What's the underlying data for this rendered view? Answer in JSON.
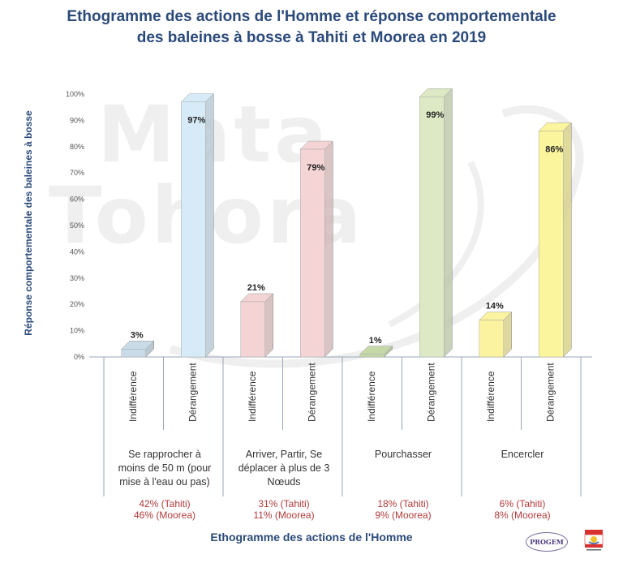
{
  "chart_data": {
    "type": "bar",
    "title": "Ethogramme des actions de l'Homme et réponse comportementale des baleines à bosse à Tahiti et Moorea en 2019",
    "title_lines": [
      "Ethogramme des actions de l'Homme et réponse comportementale",
      "des baleines à bosse à Tahiti et Moorea en 2019"
    ],
    "xlabel": "Ethogramme des actions de l'Homme",
    "ylabel": "Réponse comportementale des baleines à bosse",
    "ylim": [
      0,
      100
    ],
    "yticks": [
      "0%",
      "10%",
      "20%",
      "30%",
      "40%",
      "50%",
      "60%",
      "70%",
      "80%",
      "90%",
      "100%"
    ],
    "groups": [
      {
        "label": "Se rapprocher à moins de 50 m (pour mise à l'eau ou pas)",
        "label_lines": [
          "Se rapprocher à",
          "moins de 50 m (pour",
          "mise à l'eau ou pas)"
        ],
        "tahiti": "42% (Tahiti)",
        "moorea": "46% (Moorea)",
        "bars": [
          {
            "sub": "Indifférence",
            "value": 3,
            "label": "3%",
            "color": "#c9dbe6"
          },
          {
            "sub": "Dérangement",
            "value": 97,
            "label": "97%",
            "color": "#d6ebf7"
          }
        ]
      },
      {
        "label": "Arriver, Partir, Se déplacer à plus de 3 Nœuds",
        "label_lines": [
          "Arriver, Partir, Se",
          "déplacer à plus de 3",
          "Nœuds"
        ],
        "tahiti": "31% (Tahiti)",
        "moorea": "11% (Moorea)",
        "bars": [
          {
            "sub": "Indifférence",
            "value": 21,
            "label": "21%",
            "color": "#f3d3d3"
          },
          {
            "sub": "Dérangement",
            "value": 79,
            "label": "79%",
            "color": "#f5d4d6"
          }
        ]
      },
      {
        "label": "Pourchasser",
        "label_lines": [
          "Pourchasser"
        ],
        "tahiti": "18% (Tahiti)",
        "moorea": "9% (Moorea)",
        "bars": [
          {
            "sub": "Indifférence",
            "value": 1,
            "label": "1%",
            "color": "#c5d8a8"
          },
          {
            "sub": "Dérangement",
            "value": 99,
            "label": "99%",
            "color": "#dde9c4"
          }
        ]
      },
      {
        "label": "Encercler",
        "label_lines": [
          "Encercler"
        ],
        "tahiti": "6% (Tahiti)",
        "moorea": "8% (Moorea)",
        "bars": [
          {
            "sub": "Indifférence",
            "value": 14,
            "label": "14%",
            "color": "#fbf3a0"
          },
          {
            "sub": "Dérangement",
            "value": 86,
            "label": "86%",
            "color": "#fbf59e"
          }
        ]
      }
    ],
    "grid": false,
    "legend": "none"
  },
  "watermark": {
    "line1": "Mata",
    "line2": "Tohora"
  },
  "logos": {
    "progem": "PROGEM",
    "fp_alt": "Direction de l'environnement"
  },
  "colors": {
    "title": "#2b4a7a",
    "stat": "#b03a3a",
    "axis": "#9aa7b8"
  }
}
